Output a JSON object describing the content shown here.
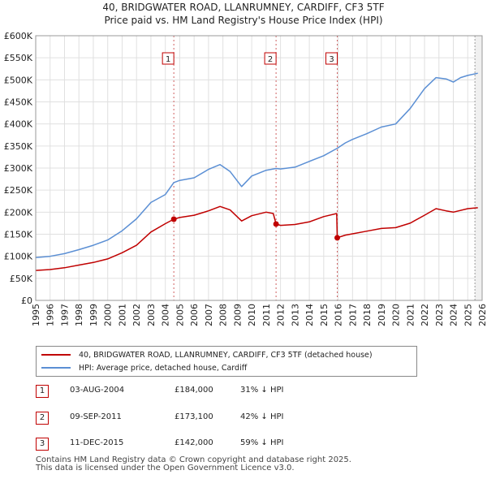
{
  "title": {
    "line1": "40, BRIDGWATER ROAD, LLANRUMNEY, CARDIFF, CF3 5TF",
    "line2": "Price paid vs. HM Land Registry's House Price Index (HPI)"
  },
  "colors": {
    "property": "#c00000",
    "hpi": "#5b8fd4",
    "grid": "#e0e0e0",
    "marker_line": "#d06060"
  },
  "chart_data": {
    "type": "line",
    "title": "Price paid vs. HM Land Registry's House Price Index (HPI)",
    "xlabel": "",
    "ylabel": "",
    "xlim": [
      1995,
      2026
    ],
    "ylim": [
      0,
      600000
    ],
    "y_ticks": [
      {
        "value": 0,
        "label": "£0"
      },
      {
        "value": 50000,
        "label": "£50K"
      },
      {
        "value": 100000,
        "label": "£100K"
      },
      {
        "value": 150000,
        "label": "£150K"
      },
      {
        "value": 200000,
        "label": "£200K"
      },
      {
        "value": 250000,
        "label": "£250K"
      },
      {
        "value": 300000,
        "label": "£300K"
      },
      {
        "value": 350000,
        "label": "£350K"
      },
      {
        "value": 400000,
        "label": "£400K"
      },
      {
        "value": 450000,
        "label": "£450K"
      },
      {
        "value": 500000,
        "label": "£500K"
      },
      {
        "value": 550000,
        "label": "£550K"
      },
      {
        "value": 600000,
        "label": "£600K"
      }
    ],
    "x_ticks": [
      "1995",
      "1996",
      "1997",
      "1998",
      "1999",
      "2000",
      "2001",
      "2002",
      "2003",
      "2004",
      "2005",
      "2006",
      "2007",
      "2008",
      "2009",
      "2010",
      "2011",
      "2012",
      "2013",
      "2014",
      "2015",
      "2016",
      "2017",
      "2018",
      "2019",
      "2020",
      "2021",
      "2022",
      "2023",
      "2024",
      "2025",
      "2026"
    ],
    "series": [
      {
        "name": "40, BRIDGWATER ROAD, LLANRUMNEY, CARDIFF, CF3 5TF (detached house)",
        "color": "#c00000",
        "points": [
          [
            1995.0,
            68000
          ],
          [
            1996.0,
            70000
          ],
          [
            1997.0,
            74000
          ],
          [
            1998.0,
            80000
          ],
          [
            1999.0,
            86000
          ],
          [
            2000.0,
            94000
          ],
          [
            2001.0,
            108000
          ],
          [
            2002.0,
            125000
          ],
          [
            2003.0,
            155000
          ],
          [
            2004.0,
            174000
          ],
          [
            2004.59,
            184000
          ],
          [
            2005.0,
            188000
          ],
          [
            2006.0,
            193000
          ],
          [
            2007.0,
            203000
          ],
          [
            2007.8,
            213000
          ],
          [
            2008.5,
            205000
          ],
          [
            2009.3,
            180000
          ],
          [
            2010.0,
            192000
          ],
          [
            2011.0,
            200000
          ],
          [
            2011.5,
            197000
          ],
          [
            2011.69,
            173100
          ],
          [
            2012.0,
            170000
          ],
          [
            2013.0,
            172000
          ],
          [
            2014.0,
            178000
          ],
          [
            2015.0,
            190000
          ],
          [
            2015.9,
            197000
          ],
          [
            2015.94,
            142000
          ],
          [
            2016.5,
            148000
          ],
          [
            2017.0,
            151000
          ],
          [
            2018.0,
            157000
          ],
          [
            2019.0,
            163000
          ],
          [
            2020.0,
            165000
          ],
          [
            2021.0,
            175000
          ],
          [
            2022.0,
            193000
          ],
          [
            2022.8,
            208000
          ],
          [
            2023.5,
            203000
          ],
          [
            2024.0,
            200000
          ],
          [
            2025.0,
            208000
          ],
          [
            2025.7,
            210000
          ]
        ]
      },
      {
        "name": "HPI: Average price, detached house, Cardiff",
        "color": "#5b8fd4",
        "points": [
          [
            1995.0,
            97000
          ],
          [
            1996.0,
            100000
          ],
          [
            1997.0,
            106000
          ],
          [
            1998.0,
            115000
          ],
          [
            1999.0,
            125000
          ],
          [
            2000.0,
            137000
          ],
          [
            2001.0,
            158000
          ],
          [
            2002.0,
            185000
          ],
          [
            2003.0,
            222000
          ],
          [
            2004.0,
            240000
          ],
          [
            2004.59,
            267000
          ],
          [
            2005.0,
            272000
          ],
          [
            2006.0,
            278000
          ],
          [
            2007.0,
            297000
          ],
          [
            2007.8,
            308000
          ],
          [
            2008.5,
            292000
          ],
          [
            2009.3,
            258000
          ],
          [
            2010.0,
            282000
          ],
          [
            2011.0,
            295000
          ],
          [
            2011.69,
            299000
          ],
          [
            2012.0,
            298000
          ],
          [
            2013.0,
            302000
          ],
          [
            2014.0,
            315000
          ],
          [
            2015.0,
            328000
          ],
          [
            2015.94,
            345000
          ],
          [
            2016.5,
            357000
          ],
          [
            2017.0,
            365000
          ],
          [
            2018.0,
            378000
          ],
          [
            2019.0,
            393000
          ],
          [
            2020.0,
            400000
          ],
          [
            2021.0,
            435000
          ],
          [
            2022.0,
            480000
          ],
          [
            2022.8,
            505000
          ],
          [
            2023.5,
            502000
          ],
          [
            2024.0,
            495000
          ],
          [
            2024.5,
            505000
          ],
          [
            2025.0,
            510000
          ],
          [
            2025.7,
            515000
          ]
        ]
      }
    ],
    "sales": [
      {
        "num": "1",
        "x": 2004.59,
        "price": 184000
      },
      {
        "num": "2",
        "x": 2011.69,
        "price": 173100
      },
      {
        "num": "3",
        "x": 2015.94,
        "price": 142000
      }
    ],
    "projection_start": 2025.5
  },
  "legend": {
    "property_label": "40, BRIDGWATER ROAD, LLANRUMNEY, CARDIFF, CF3 5TF (detached house)",
    "hpi_label": "HPI: Average price, detached house, Cardiff"
  },
  "sales_table": [
    {
      "num": "1",
      "date": "03-AUG-2004",
      "price": "£184,000",
      "delta": "31% ↓ HPI"
    },
    {
      "num": "2",
      "date": "09-SEP-2011",
      "price": "£173,100",
      "delta": "42% ↓ HPI"
    },
    {
      "num": "3",
      "date": "11-DEC-2015",
      "price": "£142,000",
      "delta": "59% ↓ HPI"
    }
  ],
  "footer": {
    "line1": "Contains HM Land Registry data © Crown copyright and database right 2025.",
    "line2": "This data is licensed under the Open Government Licence v3.0."
  }
}
